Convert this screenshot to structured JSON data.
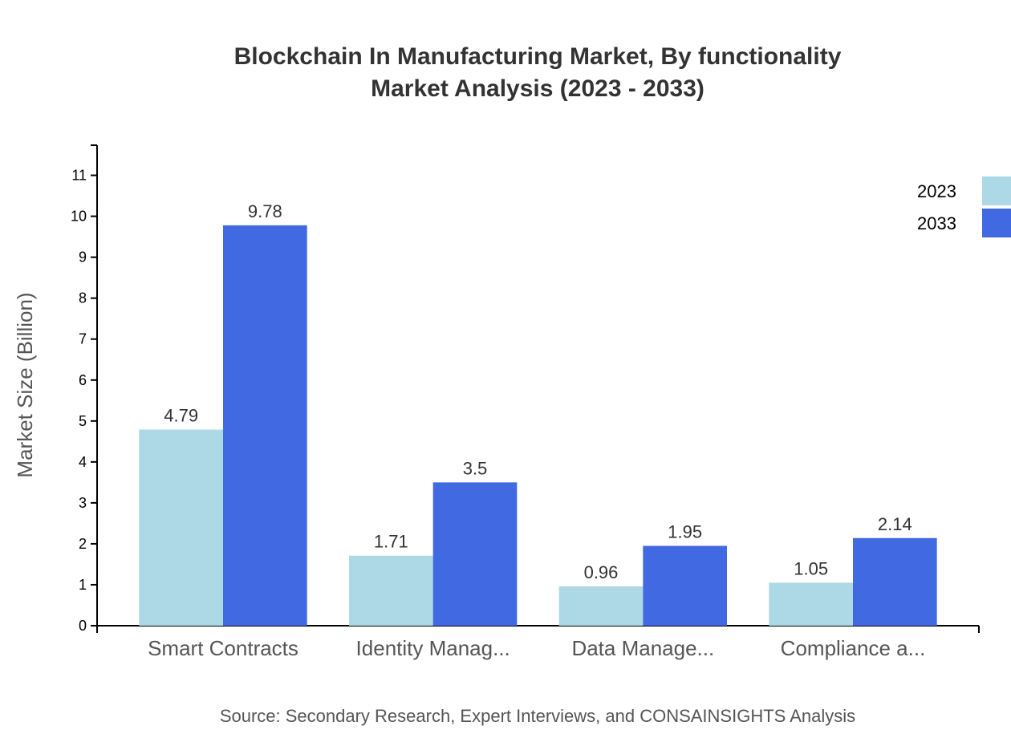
{
  "chart_data": {
    "type": "bar",
    "title": "Blockchain In Manufacturing Market, By functionality",
    "subtitle": "Market Analysis (2023 - 2033)",
    "xlabel": "",
    "ylabel": "Market Size (Billion)",
    "categories": [
      "Smart Contracts",
      "Identity Manag...",
      "Data Manage...",
      "Compliance a..."
    ],
    "series": [
      {
        "name": "2023",
        "values": [
          4.79,
          1.71,
          0.96,
          1.05
        ],
        "color": "#add8e6"
      },
      {
        "name": "2033",
        "values": [
          9.78,
          3.5,
          1.95,
          2.14
        ],
        "color": "#4169e1"
      }
    ],
    "ylim": [
      0,
      11.736
    ],
    "yticks": [
      0,
      1,
      2,
      3,
      4,
      5,
      6,
      7,
      8,
      9,
      10,
      11
    ],
    "grid": false,
    "legend": "top-right",
    "source": "Source: Secondary Research, Expert Interviews, and CONSAINSIGHTS Analysis"
  }
}
